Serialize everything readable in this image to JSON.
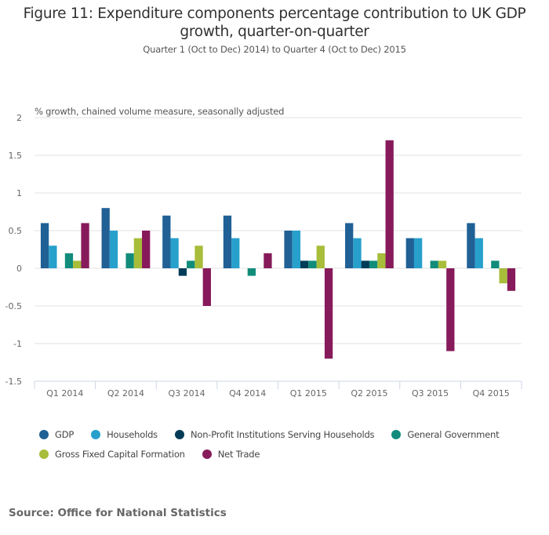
{
  "title": "Figure 11: Expenditure components percentage contribution to UK GDP growth, quarter-on-quarter",
  "title_line1": "Figure 11: Expenditure components percentage contribution to UK GDP",
  "title_line2": "growth, quarter-on-quarter",
  "subtitle": "Quarter 1 (Oct to Dec) 2014) to Quarter 4 (Oct to Dec) 2015",
  "source": "Source: Office for National Statistics",
  "chart_data": {
    "type": "bar",
    "title": "Figure 11: Expenditure components percentage contribution to UK GDP growth, quarter-on-quarter",
    "subtitle": "Quarter 1 (Oct to Dec) 2014) to Quarter 4 (Oct to Dec) 2015",
    "xlabel": "",
    "ylabel": "% growth, chained volume measure, seasonally adjusted",
    "ylim": [
      -1.5,
      2
    ],
    "yticks": [
      -1.5,
      -1,
      -0.5,
      0,
      0.5,
      1,
      1.5,
      2
    ],
    "ytick_labels": [
      "-1.5",
      "-1",
      "-0.5",
      "0",
      "0.5",
      "1",
      "1.5",
      "2"
    ],
    "grid": true,
    "legend_position": "bottom",
    "categories": [
      "Q1 2014",
      "Q2 2014",
      "Q3 2014",
      "Q4 2014",
      "Q1 2015",
      "Q2 2015",
      "Q3 2015",
      "Q4 2015"
    ],
    "series": [
      {
        "name": "GDP",
        "color": "#206095",
        "values": [
          0.6,
          0.8,
          0.7,
          0.7,
          0.5,
          0.6,
          0.4,
          0.6
        ]
      },
      {
        "name": "Households",
        "color": "#27a0cc",
        "values": [
          0.3,
          0.5,
          0.4,
          0.4,
          0.5,
          0.4,
          0.4,
          0.4
        ]
      },
      {
        "name": "Non-Profit Institutions Serving Households",
        "color": "#003c57",
        "values": [
          0,
          0,
          -0.1,
          0,
          0.1,
          0.1,
          0,
          0
        ]
      },
      {
        "name": "General Government",
        "color": "#118c7b",
        "values": [
          0.2,
          0.2,
          0.1,
          -0.1,
          0.1,
          0.1,
          0.1,
          0.1
        ]
      },
      {
        "name": "Gross Fixed Capital Formation",
        "color": "#a8bd3a",
        "values": [
          0.1,
          0.4,
          0.3,
          0,
          0.3,
          0.2,
          0.1,
          -0.2
        ]
      },
      {
        "name": "Net Trade",
        "color": "#871a5b",
        "values": [
          0.6,
          0.5,
          -0.5,
          0.2,
          -1.2,
          1.7,
          -1.1,
          -0.3
        ]
      }
    ]
  }
}
